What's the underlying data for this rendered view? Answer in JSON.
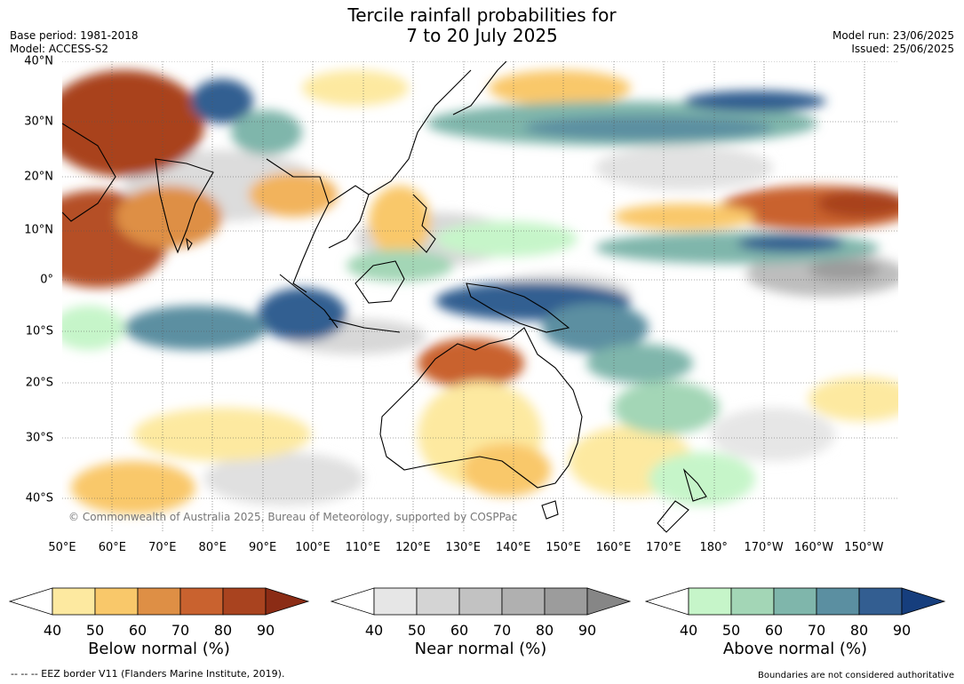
{
  "title_line1": "Tercile rainfall probabilities for",
  "title_line2": "7 to 20 July 2025",
  "base_period": "Base period: 1981-2018",
  "model": "Model: ACCESS-S2",
  "model_run": "Model run: 23/06/2025",
  "issued": "Issued: 25/06/2025",
  "copyright": "© Commonwealth of Australia 2025, Bureau of Meteorology, supported by COSPPac",
  "lon_ticks": [
    "50°E",
    "60°E",
    "70°E",
    "80°E",
    "90°E",
    "100°E",
    "110°E",
    "120°E",
    "130°E",
    "140°E",
    "150°E",
    "160°E",
    "170°E",
    "180°",
    "170°W",
    "160°W",
    "150°W"
  ],
  "lat_ticks": [
    "40°N",
    "30°N",
    "20°N",
    "10°N",
    "0°",
    "10°S",
    "20°S",
    "30°S",
    "40°S"
  ],
  "colorbars": {
    "below": {
      "title": "Below normal (%)",
      "labels": [
        "40",
        "50",
        "60",
        "70",
        "80",
        "90"
      ],
      "colors": [
        "#ffffff",
        "#fde9a0",
        "#f9c86a",
        "#de8f45",
        "#c9622f",
        "#a9431f",
        "#8b2c15"
      ]
    },
    "near": {
      "title": "Near normal (%)",
      "labels": [
        "40",
        "50",
        "60",
        "70",
        "80",
        "90"
      ],
      "colors": [
        "#ffffff",
        "#e6e6e6",
        "#d4d4d4",
        "#c2c2c2",
        "#b0b0b0",
        "#9c9c9c",
        "#868686"
      ]
    },
    "above": {
      "title": "Above normal (%)",
      "labels": [
        "40",
        "50",
        "60",
        "70",
        "80",
        "90"
      ],
      "colors": [
        "#ffffff",
        "#c6f5c9",
        "#a3d6b6",
        "#7fb6ab",
        "#5b8fa1",
        "#335e91",
        "#163e7d"
      ]
    }
  },
  "eez_note": "--  --  -- EEZ border V11 (Flanders Marine Institute, 2019).",
  "boundaries_note": "Boundaries are not considered authoritative"
}
